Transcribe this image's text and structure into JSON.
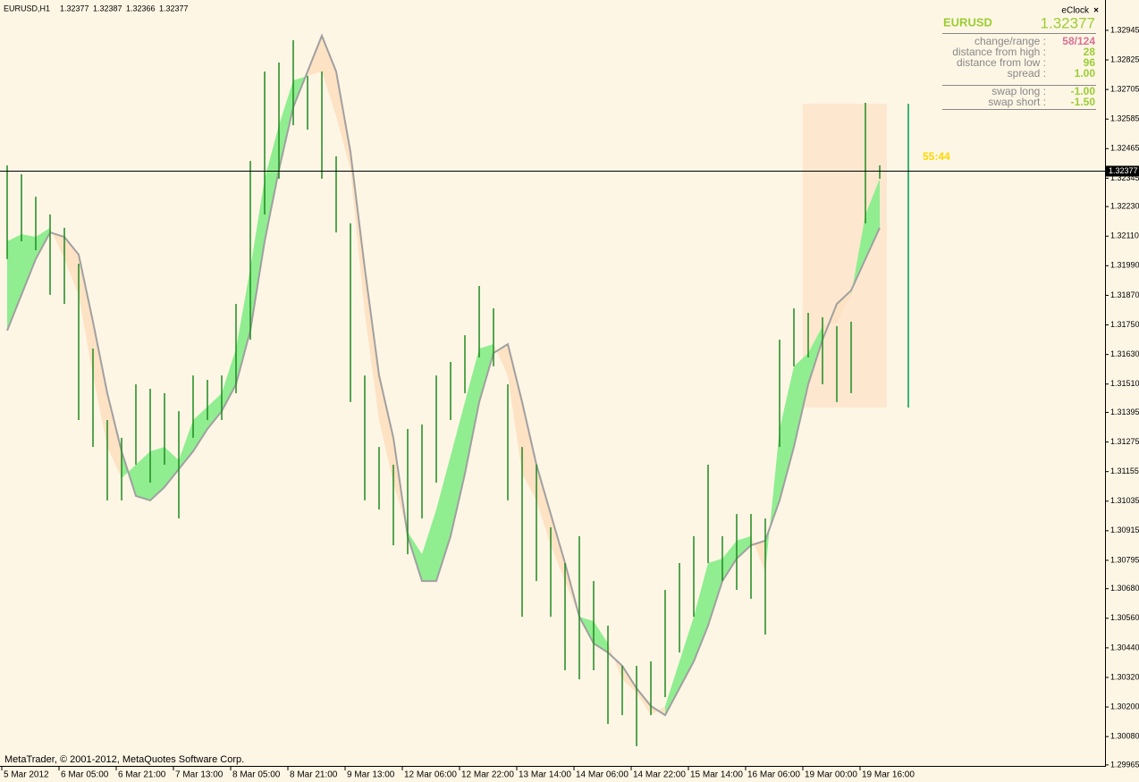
{
  "chart_data": {
    "type": "ohlc",
    "header": {
      "symbol": "EURUSD,H1",
      "ohlc": [
        1.32377,
        1.32387,
        1.32366,
        1.32377
      ]
    },
    "bid": 1.32377,
    "ylim": [
      1.29961,
      1.33068
    ],
    "yticks": [
      1.32945,
      1.32825,
      1.32705,
      1.32585,
      1.32465,
      1.32345,
      {
        "value": 1.3223,
        "label": "1.32230"
      },
      {
        "value": 1.3211,
        "label": "1.32110"
      },
      {
        "value": 1.3199,
        "label": "1.31990"
      },
      {
        "value": 1.3187,
        "label": "1.31870"
      },
      {
        "value": 1.3175,
        "label": "1.31750"
      },
      {
        "value": 1.3163,
        "label": "1.31630"
      },
      {
        "value": 1.3151,
        "label": "1.31510"
      },
      1.31395,
      1.31275,
      1.31155,
      1.31035,
      1.30915,
      1.30795,
      {
        "value": 1.3068,
        "label": "1.30680"
      },
      {
        "value": 1.3056,
        "label": "1.30560"
      },
      {
        "value": 1.3044,
        "label": "1.30440"
      },
      {
        "value": 1.3032,
        "label": "1.30320"
      },
      {
        "value": 1.302,
        "label": "1.30200"
      },
      {
        "value": 1.3008,
        "label": "1.30080"
      },
      1.29965
    ],
    "x_labels": [
      "5 Mar 2012",
      "6 Mar 05:00",
      "6 Mar 21:00",
      "7 Mar 13:00",
      "8 Mar 05:00",
      "8 Mar 21:00",
      "9 Mar 13:00",
      "12 Mar 06:00",
      "12 Mar 22:00",
      "13 Mar 14:00",
      "14 Mar 06:00",
      "14 Mar 22:00",
      "15 Mar 14:00",
      "16 Mar 06:00",
      "19 Mar 00:00",
      "19 Mar 16:00"
    ],
    "high": [
      1.32397,
      1.32361,
      1.3227,
      1.32198,
      1.32144,
      1.31998,
      1.31654,
      1.31364,
      1.31292,
      1.31509,
      1.31491,
      1.31473,
      1.314,
      1.31545,
      1.31527,
      1.31545,
      1.31835,
      1.32415,
      1.32778,
      1.32814,
      1.32905,
      1.3276,
      1.32778,
      1.32434,
      1.32162,
      1.31545,
      1.31255,
      1.31183,
      1.31328,
      1.31346,
      1.31545,
      1.316,
      1.31708,
      1.31908,
      1.31817,
      1.31509,
      1.31255,
      1.31183,
      1.30929,
      1.30784,
      1.30893,
      1.30711,
      1.3053,
      1.30367,
      1.30367,
      1.30385,
      1.30675,
      1.30784,
      1.30893,
      1.31183,
      1.30893,
      1.30983,
      1.30983,
      1.30965,
      1.3169,
      1.31817,
      1.31799,
      1.31781,
      1.31745,
      1.31763,
      1.32651,
      1.32397
    ],
    "low": [
      1.32017,
      1.32089,
      1.32053,
      1.31872,
      1.31835,
      1.31364,
      1.31255,
      1.31038,
      1.31038,
      1.31183,
      1.3111,
      1.31183,
      1.30965,
      1.31292,
      1.31364,
      1.31364,
      1.31473,
      1.3169,
      1.32198,
      1.32343,
      1.3256,
      1.32542,
      1.32343,
      1.32125,
      1.31437,
      1.31038,
      1.31001,
      1.30856,
      1.3082,
      1.30965,
      1.3111,
      1.31364,
      1.31473,
      1.31618,
      1.31582,
      1.31038,
      1.30566,
      1.30711,
      1.30566,
      1.30349,
      1.30312,
      1.30349,
      1.30131,
      1.30167,
      1.30041,
      1.30167,
      1.3024,
      1.30421,
      1.30566,
      1.30784,
      1.30711,
      1.30675,
      1.30639,
      1.30494,
      1.31255,
      1.31582,
      1.31618,
      1.31509,
      1.31437,
      1.31473,
      1.32162,
      1.32343
    ],
    "fast": [
      1.32089,
      1.32118,
      1.32107,
      1.32144,
      1.32017,
      1.31872,
      1.31545,
      1.31255,
      1.31128,
      1.31183,
      1.31237,
      1.31255,
      1.31201,
      1.31364,
      1.31418,
      1.31473,
      1.31654,
      1.3198,
      1.32343,
      1.3256,
      1.32742,
      1.3276,
      1.32778,
      1.32597,
      1.32379,
      1.31799,
      1.31364,
      1.3111,
      1.30911,
      1.3082,
      1.31001,
      1.31219,
      1.31437,
      1.31654,
      1.31672,
      1.31545,
      1.31146,
      1.31038,
      1.30856,
      1.30711,
      1.30566,
      1.30548,
      1.30458,
      1.30312,
      1.30258,
      1.30167,
      1.30204,
      1.30385,
      1.30566,
      1.30784,
      1.30802,
      1.30875,
      1.30893,
      1.30747,
      1.31328,
      1.31582,
      1.31636,
      1.31745,
      1.31763,
      1.31872,
      1.32198,
      1.32343
    ],
    "slow": [
      1.31727,
      1.31872,
      1.32017,
      1.32125,
      1.32107,
      1.32035,
      1.31763,
      1.31473,
      1.31237,
      1.31056,
      1.31038,
      1.31092,
      1.31165,
      1.31237,
      1.31328,
      1.314,
      1.31509,
      1.31727,
      1.32089,
      1.32379,
      1.32633,
      1.32778,
      1.32923,
      1.32778,
      1.32452,
      1.3198,
      1.31545,
      1.31292,
      1.30893,
      1.30711,
      1.30711,
      1.30893,
      1.31146,
      1.31437,
      1.31636,
      1.31672,
      1.31437,
      1.31183,
      1.30983,
      1.30784,
      1.30566,
      1.30458,
      1.30421,
      1.30367,
      1.30276,
      1.30204,
      1.30167,
      1.30276,
      1.30385,
      1.3053,
      1.30711,
      1.30802,
      1.30856,
      1.30875,
      1.31038,
      1.31255,
      1.31509,
      1.3169,
      1.31835,
      1.3189,
      1.32017,
      1.32144
    ],
    "day_range": [
      1.32647,
      1.31415
    ],
    "timer": "55:44",
    "copyright": "MetaTrader, © 2001-2012, MetaQuotes Software Corp.",
    "bar_color": "#1f8a1f",
    "up_color": "#90ee90",
    "down_color": "#fde2c4",
    "line_color": "#a0a0a0",
    "range_color": "#fde8cf",
    "candle_color": "#3cb371",
    "timer_color": "#ffd700"
  },
  "panel": {
    "title": "eClock",
    "symbol": "EURUSD",
    "rows": [
      {
        "label": "change/range :",
        "value": "58/124",
        "color": "#d87093"
      },
      {
        "label": "distance from high :",
        "value": "28",
        "color": "#9acd32"
      },
      {
        "label": "distance from low :",
        "value": "96",
        "color": "#9acd32"
      },
      {
        "label": "spread :",
        "value": "1.00",
        "color": "#9acd32"
      }
    ],
    "swap_rows": [
      {
        "label": "swap long :",
        "value": "-1.00",
        "color": "#9acd32"
      },
      {
        "label": "swap short :",
        "value": "-1.50",
        "color": "#9acd32"
      }
    ]
  }
}
